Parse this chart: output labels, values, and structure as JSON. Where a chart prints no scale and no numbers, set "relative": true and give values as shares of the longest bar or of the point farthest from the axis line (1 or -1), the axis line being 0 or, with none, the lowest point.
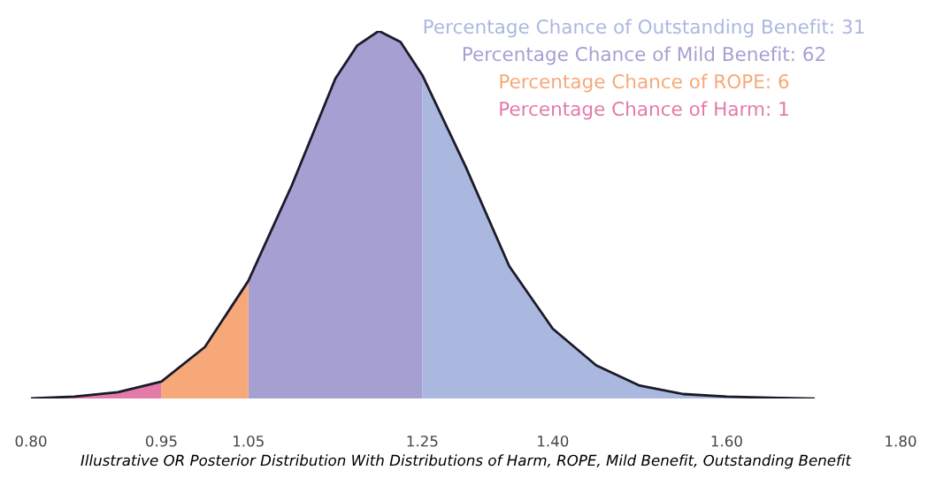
{
  "chart_data": {
    "type": "area",
    "relative": true,
    "xlabel": "Illustrative OR Posterior Distribution With Distributions of Harm, ROPE, Mild Benefit, Outstanding Benefit",
    "xlim": [
      0.8,
      1.8
    ],
    "xticks": [
      {
        "value": 0.8,
        "label": "0.80"
      },
      {
        "value": 0.95,
        "label": "0.95"
      },
      {
        "value": 1.05,
        "label": "1.05"
      },
      {
        "value": 1.25,
        "label": "1.25"
      },
      {
        "value": 1.4,
        "label": "1.40"
      },
      {
        "value": 1.6,
        "label": "1.60"
      },
      {
        "value": 1.8,
        "label": "1.80"
      }
    ],
    "grid": false,
    "series": [
      {
        "name": "Percentage Chance of Outstanding Benefit: 31",
        "color": "#aab8df",
        "x": [
          1.25,
          1.3,
          1.35,
          1.4,
          1.45,
          1.5,
          1.55,
          1.6,
          1.65,
          1.7
        ],
        "values": [
          0.88,
          0.63,
          0.36,
          0.19,
          0.09,
          0.035,
          0.012,
          0.005,
          0.002,
          0
        ]
      },
      {
        "name": "Percentage Chance of Mild Benefit: 62",
        "color": "#a69fd2",
        "x": [
          1.05,
          1.1,
          1.15,
          1.175,
          1.2,
          1.225,
          1.25
        ],
        "values": [
          0.32,
          0.58,
          0.87,
          0.96,
          1.0,
          0.97,
          0.88
        ]
      },
      {
        "name": "Percentage Chance of ROPE: 6",
        "color": "#f6a878",
        "x": [
          0.95,
          1.0,
          1.05
        ],
        "values": [
          0.046,
          0.14,
          0.32
        ]
      },
      {
        "name": "Percentage Chance of Harm: 1",
        "color": "#e47aa8",
        "x": [
          0.8,
          0.85,
          0.9,
          0.95
        ],
        "values": [
          0,
          0.005,
          0.017,
          0.046
        ]
      },
      {
        "type": "line",
        "color": "#1a1a2a",
        "x": [
          0.8,
          0.85,
          0.9,
          0.95,
          1.0,
          1.05,
          1.1,
          1.15,
          1.175,
          1.2,
          1.225,
          1.25,
          1.3,
          1.35,
          1.4,
          1.45,
          1.5,
          1.55,
          1.6,
          1.65,
          1.7
        ],
        "values": [
          0,
          0.005,
          0.017,
          0.046,
          0.14,
          0.32,
          0.58,
          0.87,
          0.96,
          1.0,
          0.97,
          0.88,
          0.63,
          0.36,
          0.19,
          0.09,
          0.035,
          0.012,
          0.005,
          0.002,
          0
        ]
      }
    ]
  }
}
